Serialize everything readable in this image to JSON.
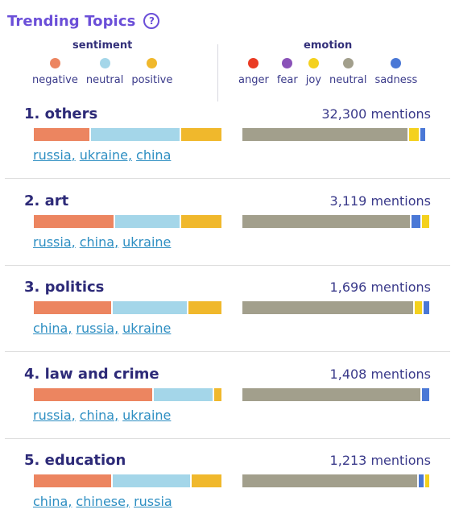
{
  "header": {
    "title": "Trending Topics",
    "help_glyph": "?"
  },
  "legend": {
    "sentiment": {
      "title": "sentiment",
      "items": [
        {
          "label": "negative",
          "color": "#ec8560"
        },
        {
          "label": "neutral",
          "color": "#a4d6e9"
        },
        {
          "label": "positive",
          "color": "#f0b82c"
        }
      ]
    },
    "emotion": {
      "title": "emotion",
      "items": [
        {
          "label": "anger",
          "color": "#ea3b24"
        },
        {
          "label": "fear",
          "color": "#8a52b8"
        },
        {
          "label": "joy",
          "color": "#f4d11e"
        },
        {
          "label": "neutral",
          "color": "#a29f8c"
        },
        {
          "label": "sadness",
          "color": "#4a78d6"
        }
      ]
    }
  },
  "topics": [
    {
      "name": "1. others",
      "mentions": "32,300 mentions",
      "sentiment": {
        "negative": 0.3,
        "neutral": 0.48,
        "positive": 0.22
      },
      "emotion": {
        "anger": 0,
        "fear": 0,
        "neutral": 0.9,
        "joy": 0.05,
        "sadness": 0.03
      },
      "keywords": [
        "russia,",
        "ukraine,",
        "china"
      ]
    },
    {
      "name": "2. art",
      "mentions": "3,119 mentions",
      "sentiment": {
        "negative": 0.43,
        "neutral": 0.35,
        "positive": 0.22
      },
      "emotion": {
        "anger": 0,
        "fear": 0,
        "neutral": 0.91,
        "sadness": 0.05,
        "joy": 0.04
      },
      "keywords": [
        "russia,",
        "china,",
        "ukraine"
      ]
    },
    {
      "name": "3. politics",
      "mentions": "1,696 mentions",
      "sentiment": {
        "negative": 0.42,
        "neutral": 0.4,
        "positive": 0.18
      },
      "emotion": {
        "anger": 0,
        "fear": 0,
        "neutral": 0.93,
        "joy": 0.04,
        "sadness": 0.03
      },
      "keywords": [
        "china,",
        "russia,",
        "ukraine"
      ]
    },
    {
      "name": "4. law and crime",
      "mentions": "1,408 mentions",
      "sentiment": {
        "negative": 0.64,
        "neutral": 0.32,
        "positive": 0.04
      },
      "emotion": {
        "anger": 0,
        "fear": 0,
        "neutral": 0.96,
        "sadness": 0.04,
        "joy": 0
      },
      "keywords": [
        "russia,",
        "china,",
        "ukraine"
      ]
    },
    {
      "name": "5. education",
      "mentions": "1,213 mentions",
      "sentiment": {
        "negative": 0.42,
        "neutral": 0.42,
        "positive": 0.16
      },
      "emotion": {
        "anger": 0,
        "fear": 0,
        "neutral": 0.95,
        "sadness": 0.03,
        "joy": 0.02
      },
      "keywords": [
        "china,",
        "chinese,",
        "russia"
      ]
    }
  ]
}
